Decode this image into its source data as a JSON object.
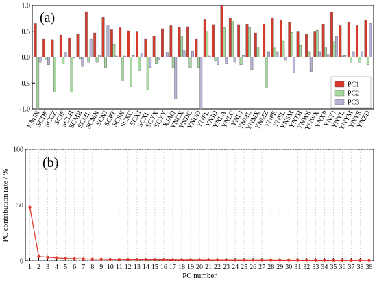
{
  "chart_data": [
    {
      "type": "bar",
      "panel_label": "(a)",
      "ylim": [
        -1.0,
        1.0
      ],
      "yticks": [
        "1.0",
        "0.5",
        "0.0",
        "-0.5",
        "-1.0"
      ],
      "legend": {
        "position": "right-middle"
      },
      "categories": [
        "KMJN",
        "SCDF",
        "SCGZ",
        "SCJF",
        "SCLH",
        "SCMB",
        "SCML",
        "SCMN",
        "SCNJ",
        "SCPT",
        "SCSN",
        "SCXC",
        "SCXJ",
        "SCXL",
        "SCYX",
        "SCYY",
        "XJAQ",
        "YNCX",
        "YNDC",
        "YNDD",
        "YNFL",
        "YNJD",
        "YNLA",
        "YNLC",
        "YNLJ",
        "YNML",
        "YNMX",
        "YNMZ",
        "YNPE",
        "YNSL",
        "YNSM",
        "YNTH",
        "YNWS",
        "YNWX",
        "YNXP",
        "YNYJ",
        "YNYL",
        "YNYM",
        "YNYS",
        "YNZD"
      ],
      "series": [
        {
          "name": "PC1",
          "color": "#d9392b",
          "values": [
            0.65,
            0.35,
            0.34,
            0.43,
            0.37,
            0.45,
            0.88,
            0.47,
            0.77,
            0.53,
            0.57,
            0.51,
            0.49,
            0.35,
            0.41,
            0.55,
            0.61,
            0.58,
            0.59,
            0.35,
            0.73,
            0.63,
            1.0,
            0.75,
            0.63,
            0.64,
            0.47,
            0.64,
            0.76,
            0.72,
            0.68,
            0.49,
            0.44,
            0.49,
            0.64,
            0.87,
            0.61,
            0.68,
            0.61,
            0.72
          ]
        },
        {
          "name": "PC2",
          "color": "#a6d8a0",
          "values": [
            -1.0,
            -0.05,
            -0.68,
            -0.13,
            -0.68,
            -0.03,
            -0.1,
            -0.1,
            -0.2,
            0.24,
            -0.46,
            -0.57,
            -0.25,
            -0.63,
            -0.12,
            0.0,
            -0.2,
            0.41,
            -0.2,
            -0.2,
            0.5,
            -0.07,
            0.57,
            0.7,
            -0.15,
            0.57,
            0.2,
            -0.6,
            0.18,
            0.31,
            0.48,
            0.23,
            0.1,
            0.52,
            0.2,
            0.3,
            0.02,
            -0.1,
            -0.1,
            -0.15
          ]
        },
        {
          "name": "PC3",
          "color": "#b7b3d6",
          "values": [
            -0.1,
            -0.15,
            0.0,
            0.09,
            -0.02,
            -0.18,
            0.35,
            0.04,
            0.62,
            0.02,
            0.02,
            0.03,
            0.08,
            -0.2,
            -0.04,
            0.09,
            -0.81,
            0.13,
            0.11,
            -1.0,
            0.02,
            -0.15,
            -0.12,
            -0.1,
            0.03,
            -0.24,
            0.0,
            0.1,
            0.1,
            -0.06,
            -0.3,
            0.0,
            -0.28,
            0.1,
            0.05,
            0.4,
            0.03,
            0.1,
            0.1,
            0.65
          ]
        }
      ]
    },
    {
      "type": "line",
      "panel_label": "(b)",
      "xlabel": "PC number",
      "ylabel": "PC contribution rate / %",
      "ylim": [
        0,
        100
      ],
      "yticks": [
        "0",
        "50",
        "100"
      ],
      "grid": true,
      "series": [
        {
          "name": "",
          "color": "#e03a2f",
          "x": [
            1,
            2,
            3,
            4,
            5,
            6,
            7,
            8,
            9,
            10,
            11,
            12,
            13,
            14,
            15,
            16,
            17,
            18,
            19,
            20,
            21,
            22,
            23,
            24,
            25,
            26,
            27,
            28,
            29,
            30,
            31,
            32,
            33,
            34,
            35,
            36,
            37,
            38,
            39
          ],
          "values": [
            48,
            3.8,
            3.2,
            2.6,
            2.0,
            1.8,
            1.6,
            1.4,
            1.3,
            1.2,
            1.1,
            1.0,
            0.95,
            0.9,
            0.85,
            0.8,
            0.75,
            0.7,
            0.65,
            0.6,
            0.55,
            0.5,
            0.48,
            0.45,
            0.42,
            0.4,
            0.38,
            0.35,
            0.33,
            0.3,
            0.28,
            0.25,
            0.22,
            0.2,
            0.18,
            0.15,
            0.12,
            0.1,
            0.08
          ]
        }
      ]
    }
  ]
}
